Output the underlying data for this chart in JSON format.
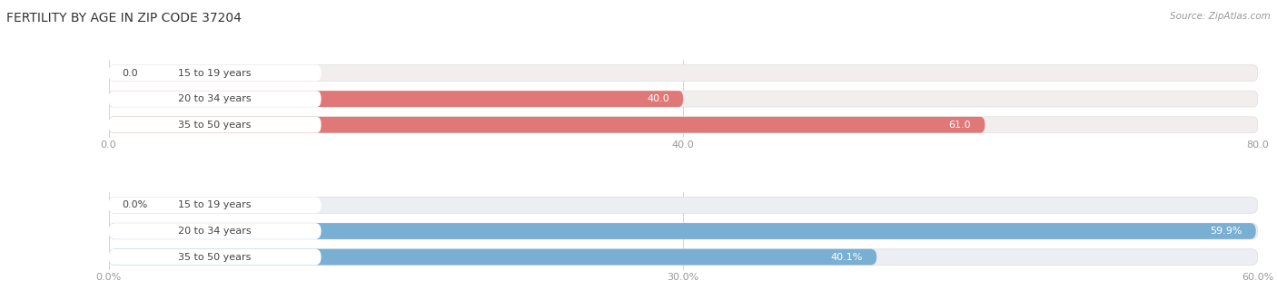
{
  "title": "FERTILITY BY AGE IN ZIP CODE 37204",
  "source": "Source: ZipAtlas.com",
  "top_chart": {
    "categories": [
      "15 to 19 years",
      "20 to 34 years",
      "35 to 50 years"
    ],
    "values": [
      0.0,
      40.0,
      61.0
    ],
    "bar_color": "#E07878",
    "track_color": "#F2EEEE",
    "xlim": [
      0,
      80
    ],
    "xticks": [
      0.0,
      40.0,
      80.0
    ],
    "xtick_labels": [
      "0.0",
      "40.0",
      "80.0"
    ],
    "is_percent": false
  },
  "bottom_chart": {
    "categories": [
      "15 to 19 years",
      "20 to 34 years",
      "35 to 50 years"
    ],
    "values": [
      0.0,
      59.9,
      40.1
    ],
    "bar_color": "#7AAFD4",
    "track_color": "#ECEEF4",
    "xlim": [
      0,
      60
    ],
    "xticks": [
      0.0,
      30.0,
      60.0
    ],
    "xtick_labels": [
      "0.0%",
      "30.0%",
      "60.0%"
    ],
    "is_percent": true
  },
  "bg_color": "#FFFFFF",
  "label_color": "#444444",
  "tick_color": "#999999",
  "bar_height": 0.62,
  "label_fontsize": 8,
  "tick_fontsize": 8,
  "title_fontsize": 10,
  "value_fontsize": 8
}
